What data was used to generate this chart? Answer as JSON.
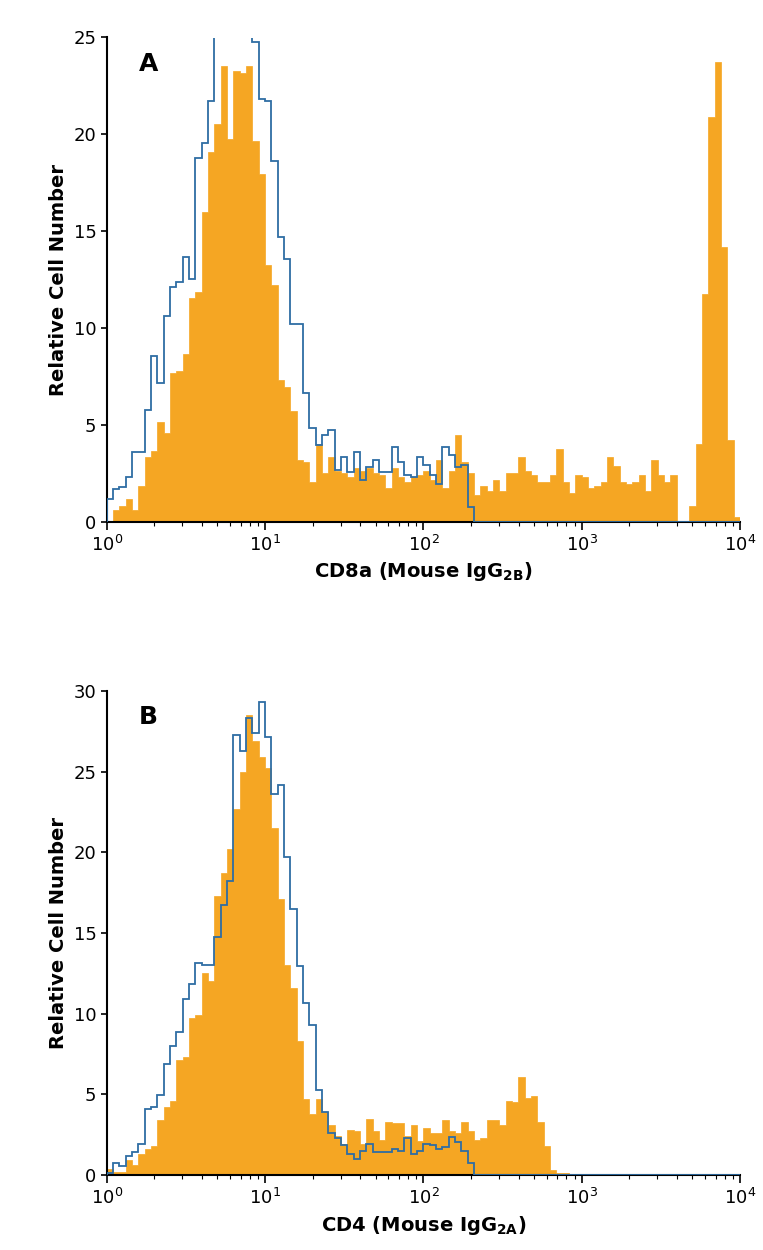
{
  "panel_A": {
    "annotation": "A",
    "xlabel": "CD8a (Mouse IgG$_\\mathregular{2B}$)",
    "ylabel": "Relative Cell Number",
    "ylim": [
      0,
      25
    ],
    "yticks": [
      0,
      5,
      10,
      15,
      20,
      25
    ],
    "orange_color": "#F5A623",
    "blue_color": "#2E6DA4"
  },
  "panel_B": {
    "annotation": "B",
    "xlabel": "CD4 (Mouse IgG$_\\mathregular{2A}$)",
    "ylabel": "Relative Cell Number",
    "ylim": [
      0,
      30
    ],
    "yticks": [
      0,
      5,
      10,
      15,
      20,
      25,
      30
    ],
    "orange_color": "#F5A623",
    "blue_color": "#2E6DA4"
  },
  "figure_bg": "#FFFFFF",
  "axes_bg": "#FFFFFF",
  "n_bins": 100
}
